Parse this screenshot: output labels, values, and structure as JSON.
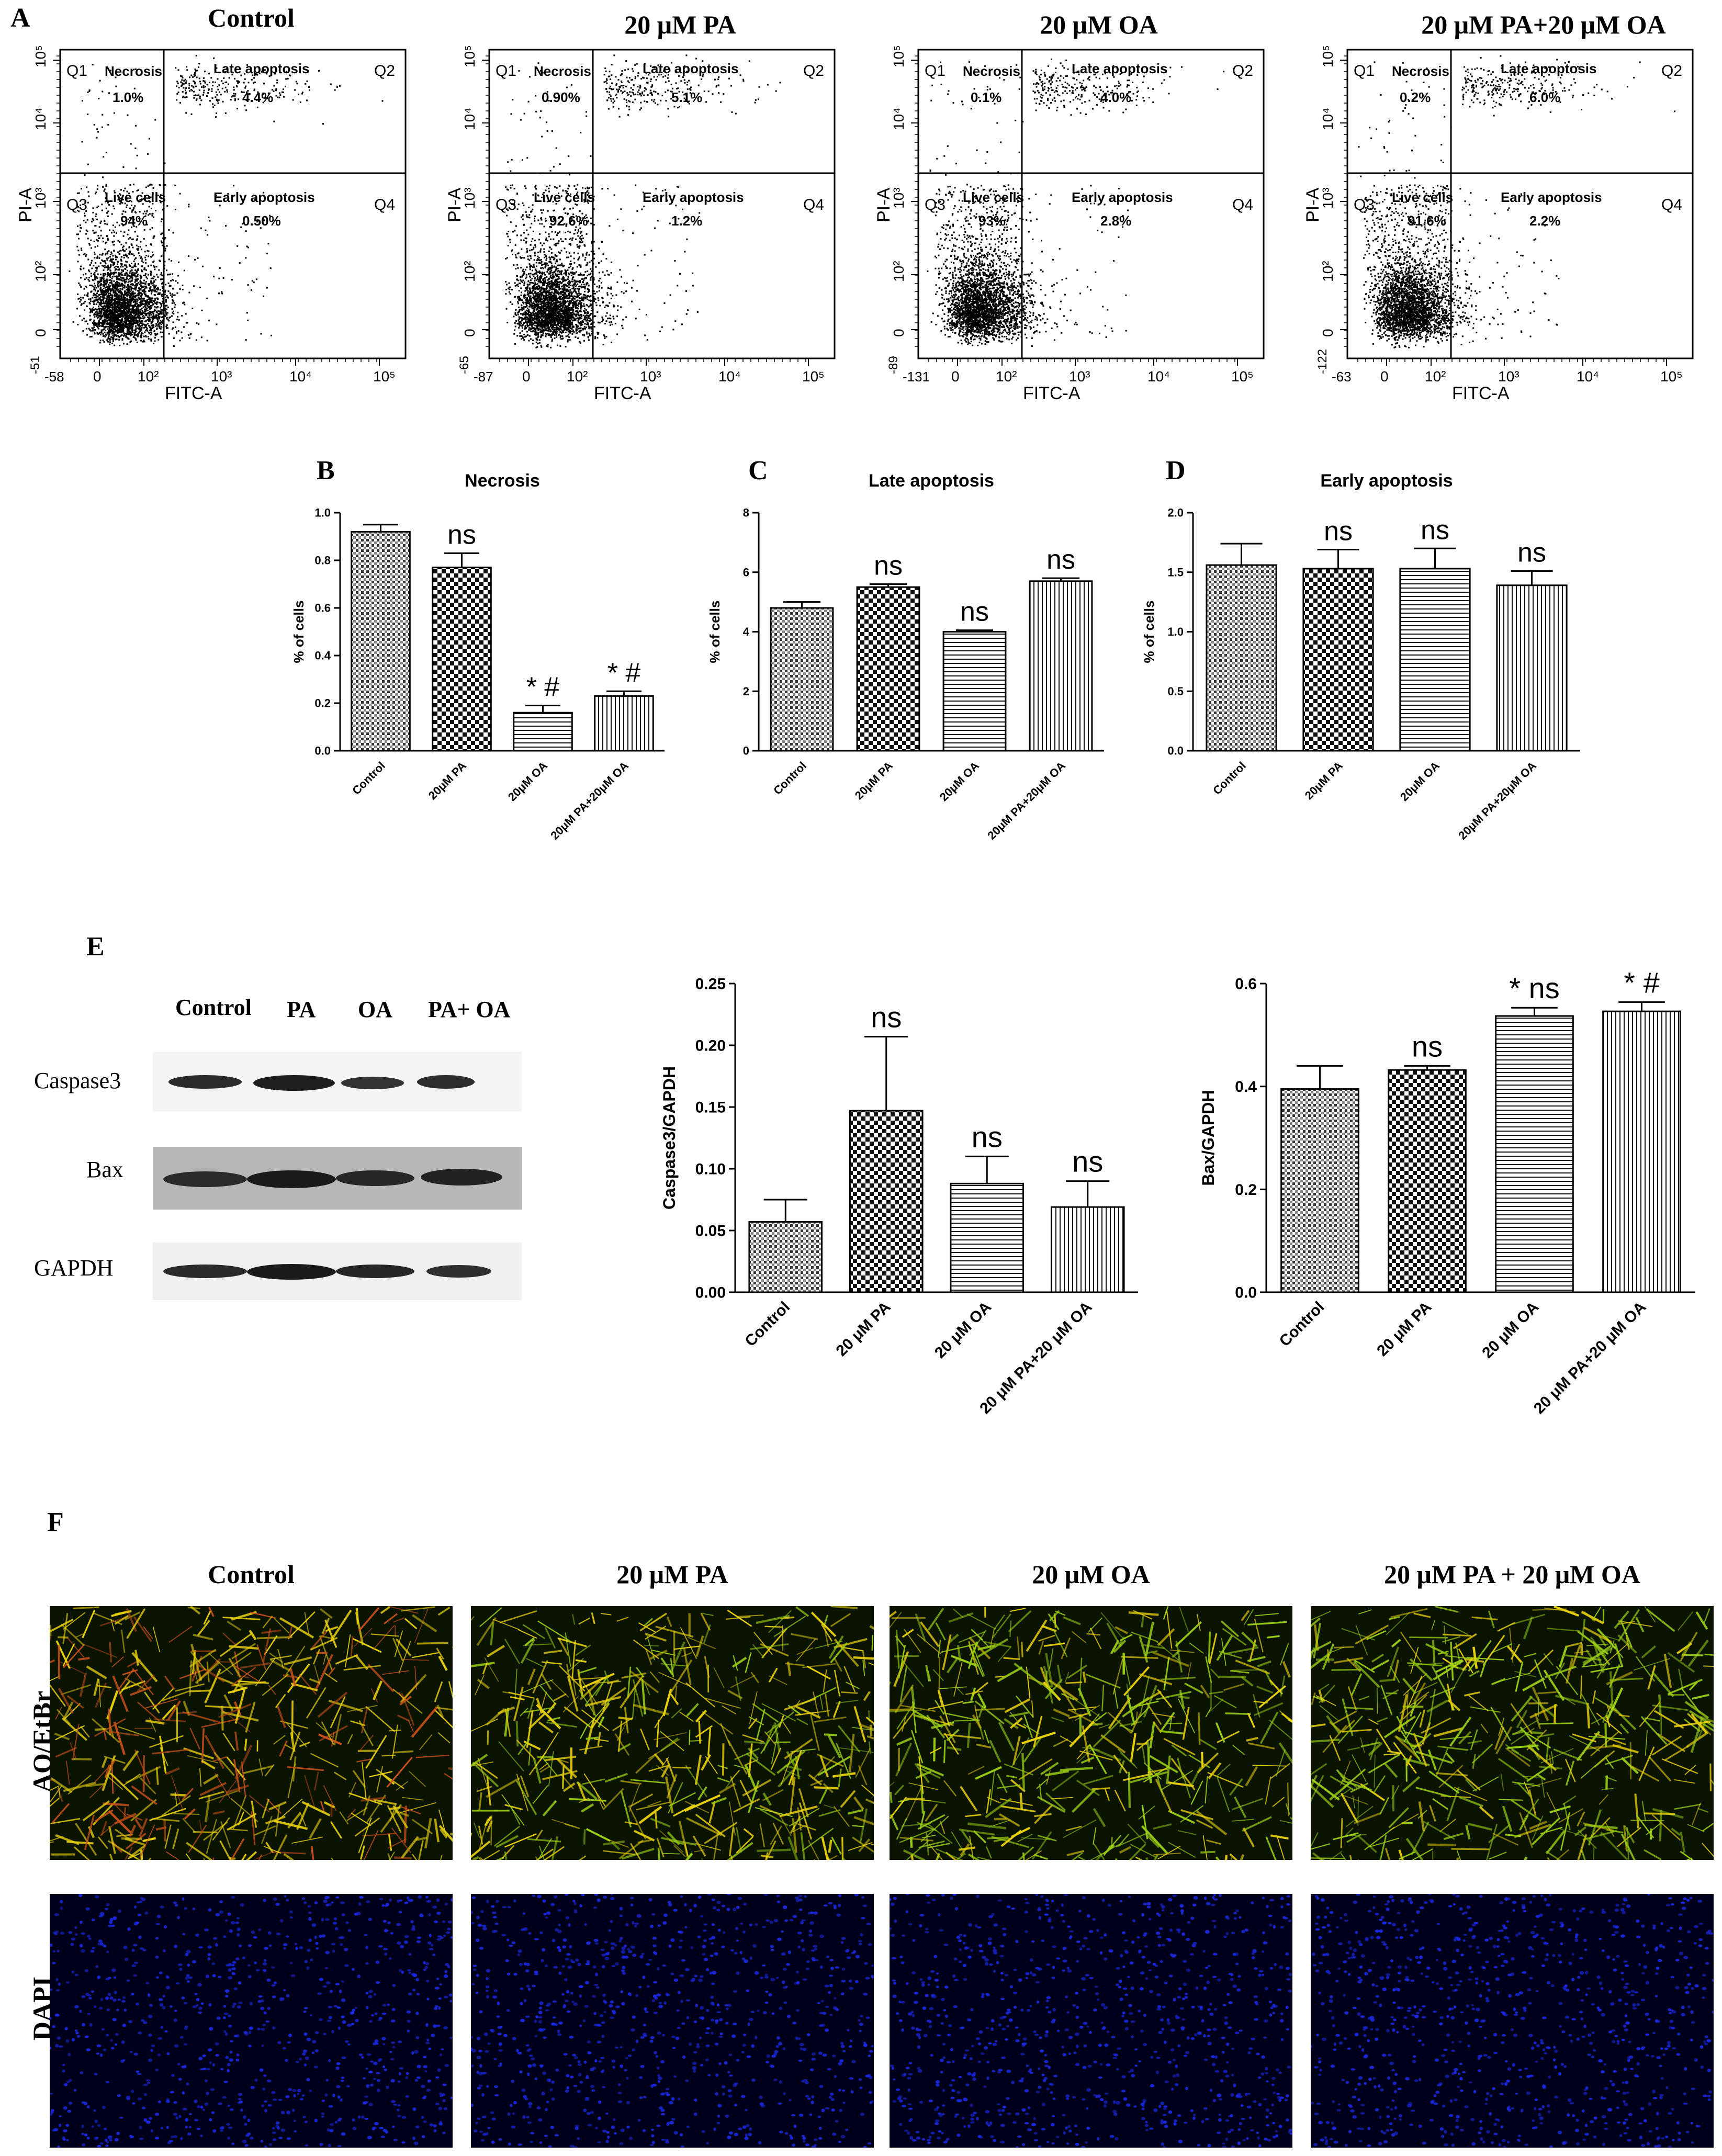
{
  "panel_labels": {
    "a": "A",
    "b": "B",
    "c": "C",
    "d": "D",
    "e": "E",
    "f": "F"
  },
  "flow": {
    "titles": [
      "Control",
      "20 μM PA",
      "20 μM OA",
      "20 μM PA+20 μM OA"
    ],
    "y_axis_label": "PI-A",
    "x_axis_label": "FITC-A",
    "quadrant_names": {
      "q1": "Necrosis",
      "q2": "Late apoptosis",
      "q3": "Live cells",
      "q4": "Early apoptosis"
    },
    "quadrant_ids": {
      "q1": "Q1",
      "q2": "Q2",
      "q3": "Q3",
      "q4": "Q4"
    },
    "plots": [
      {
        "q1": "1.0%",
        "q2": "4.4%",
        "q3": "94%",
        "q4": "0.50%",
        "x_min": "-58",
        "y_min": "-51"
      },
      {
        "q1": "0.90%",
        "q2": "5.1%",
        "q3": "92.6%",
        "q4": "1.2%",
        "x_min": "-87",
        "y_min": "-65"
      },
      {
        "q1": "0.1%",
        "q2": "4.0%",
        "q3": "93%",
        "q4": "2.8%",
        "x_min": "-131",
        "y_min": "-89"
      },
      {
        "q1": "0.2%",
        "q2": "6.0%",
        "q3": "91.6%",
        "q4": "2.2%",
        "x_min": "-63",
        "y_min": "-122"
      }
    ],
    "x_ticks": [
      "0",
      "10²",
      "10³",
      "10⁴",
      "10⁵"
    ],
    "y_ticks": [
      "0",
      "10²",
      "10³",
      "10⁴",
      "10⁵"
    ]
  },
  "chart_data": [
    {
      "type": "bar",
      "panel": "B",
      "title": "Necrosis",
      "ylabel": "% of cells",
      "categories": [
        "Control",
        "20μM PA",
        "20μM OA",
        "20μM PA+20μM OA"
      ],
      "values": [
        0.92,
        0.77,
        0.16,
        0.23
      ],
      "errors": [
        0.03,
        0.06,
        0.03,
        0.02
      ],
      "ylim": [
        0,
        1.0
      ],
      "yticks": [
        "0.0",
        "0.2",
        "0.4",
        "0.6",
        "0.8",
        "1.0"
      ],
      "annotations": [
        "",
        "ns",
        "* #",
        "* #"
      ]
    },
    {
      "type": "bar",
      "panel": "C",
      "title": "Late apoptosis",
      "ylabel": "% of cells",
      "categories": [
        "Control",
        "20μM PA",
        "20μM OA",
        "20μM PA+20μM OA"
      ],
      "values": [
        4.8,
        5.5,
        4.0,
        5.7
      ],
      "errors": [
        0.2,
        0.1,
        0.05,
        0.1
      ],
      "ylim": [
        0,
        8
      ],
      "yticks": [
        "0",
        "2",
        "4",
        "6",
        "8"
      ],
      "annotations": [
        "",
        "ns",
        "ns",
        "ns"
      ]
    },
    {
      "type": "bar",
      "panel": "D",
      "title": "Early apoptosis",
      "ylabel": "% of cells",
      "categories": [
        "Control",
        "20μM PA",
        "20μM OA",
        "20μM PA+20μM OA"
      ],
      "values": [
        1.56,
        1.53,
        1.53,
        1.39
      ],
      "errors": [
        0.18,
        0.16,
        0.17,
        0.12
      ],
      "ylim": [
        0,
        2.0
      ],
      "yticks": [
        "0.0",
        "0.5",
        "1.0",
        "1.5",
        "2.0"
      ],
      "annotations": [
        "",
        "ns",
        "ns",
        "ns"
      ]
    },
    {
      "type": "bar",
      "panel": "E1",
      "title": "",
      "ylabel": "Caspase3/GAPDH",
      "categories": [
        "Control",
        "20 μM PA",
        "20 μM OA",
        "20 μM PA+20 μM OA"
      ],
      "values": [
        0.057,
        0.147,
        0.088,
        0.069
      ],
      "errors": [
        0.018,
        0.06,
        0.022,
        0.021
      ],
      "ylim": [
        0,
        0.25
      ],
      "yticks": [
        "0.00",
        "0.05",
        "0.10",
        "0.15",
        "0.20",
        "0.25"
      ],
      "annotations": [
        "",
        "ns",
        "ns",
        "ns"
      ]
    },
    {
      "type": "bar",
      "panel": "E2",
      "title": "",
      "ylabel": "Bax/GAPDH",
      "categories": [
        "Control",
        "20 μM PA",
        "20 μM OA",
        "20 μM PA+20 μM OA"
      ],
      "values": [
        0.395,
        0.432,
        0.537,
        0.546
      ],
      "errors": [
        0.045,
        0.008,
        0.016,
        0.018
      ],
      "ylim": [
        0,
        0.6
      ],
      "yticks": [
        "0.0",
        "0.2",
        "0.4",
        "0.6"
      ],
      "annotations": [
        "",
        "ns",
        "* ns",
        "* #"
      ]
    }
  ],
  "blot": {
    "lanes": [
      "Control",
      "PA",
      "OA",
      "PA+ OA"
    ],
    "proteins": [
      "Caspase3",
      "Bax",
      "GAPDH"
    ]
  },
  "micro": {
    "titles": [
      "Control",
      "20 μM PA",
      "20 μM OA",
      "20 μM PA + 20 μM OA"
    ],
    "rows": [
      "AO/EtBr",
      "DAPI"
    ]
  },
  "colors": {
    "ao_green": "#9acd14",
    "ao_yellow": "#e8d00a",
    "ao_red": "#c8501a",
    "dapi_blue": "#1a28e0",
    "dapi_bg": "#00001a"
  }
}
